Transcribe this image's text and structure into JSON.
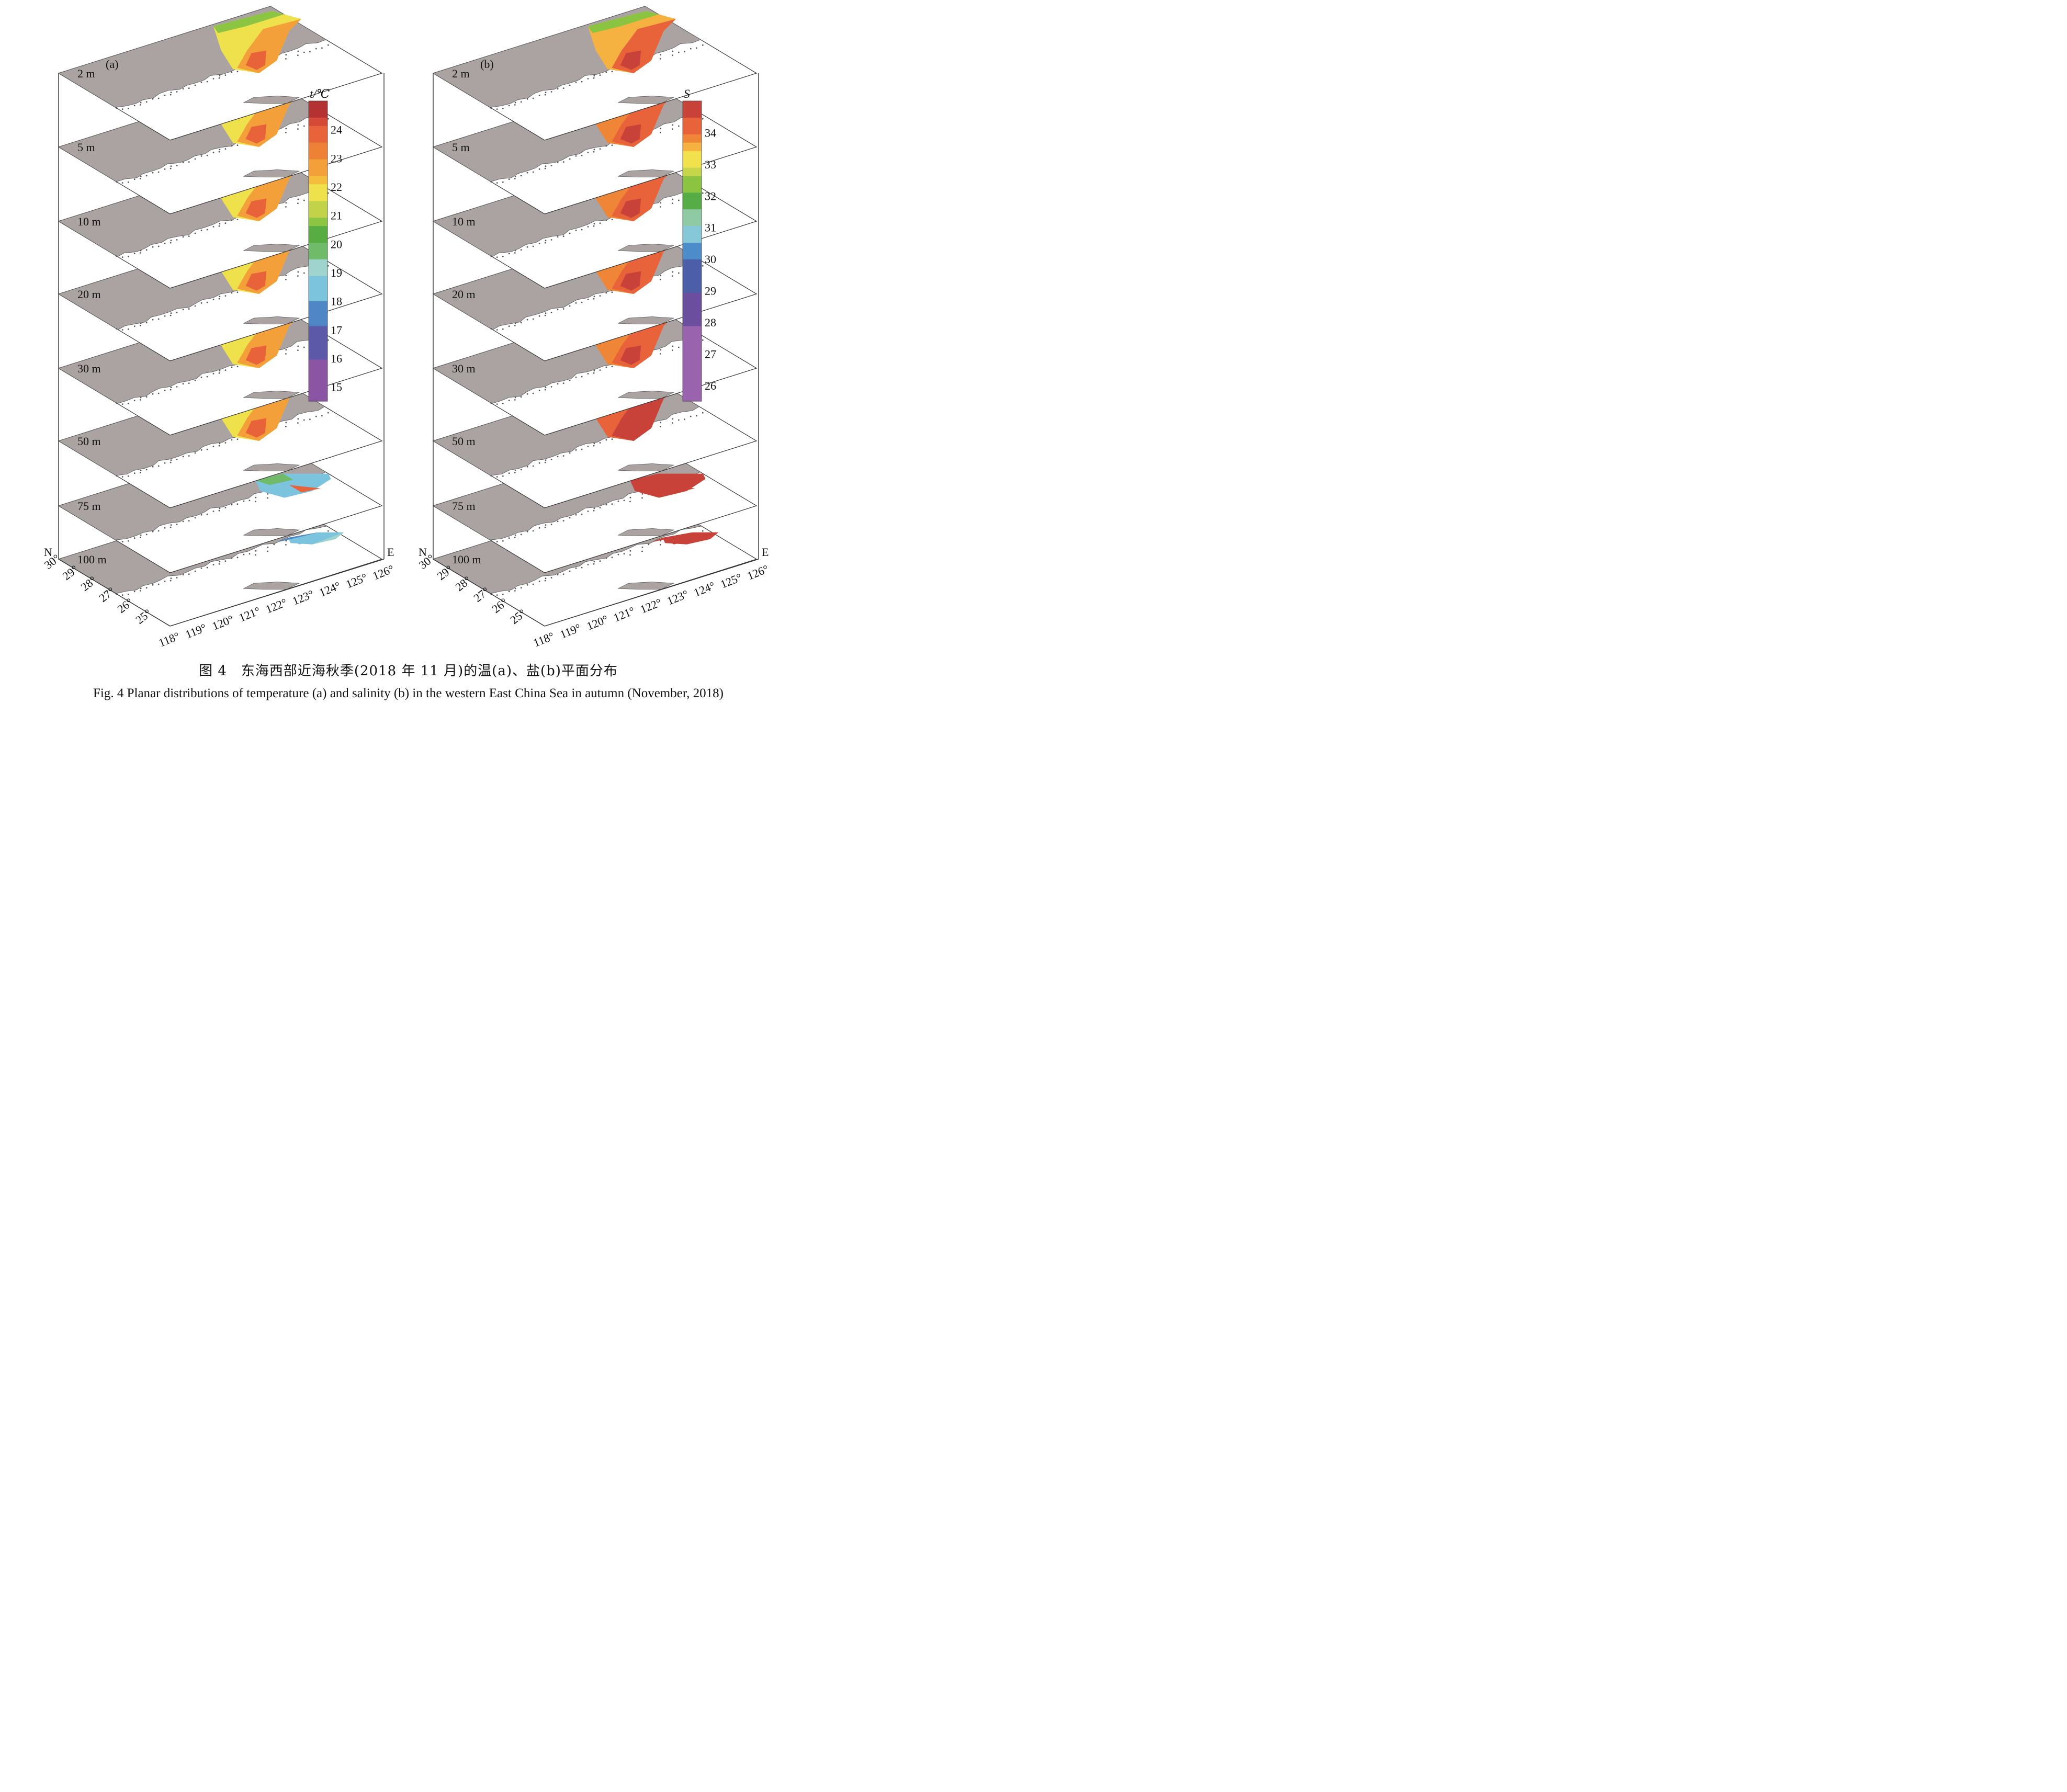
{
  "colors": {
    "land": "#aaa3a2",
    "frame": "#333333",
    "temp": [
      {
        "v": 15,
        "c": "#8b55a3"
      },
      {
        "v": 16,
        "c": "#5c5aa8"
      },
      {
        "v": 17,
        "c": "#4f86c6"
      },
      {
        "v": 18,
        "c": "#7cc3dd"
      },
      {
        "v": 19,
        "c": "#9fd3cd"
      },
      {
        "v": 19.5,
        "c": "#6fbb6a"
      },
      {
        "v": 20,
        "c": "#58ad42"
      },
      {
        "v": 20.5,
        "c": "#8cc541"
      },
      {
        "v": 21,
        "c": "#c2d34a"
      },
      {
        "v": 21.5,
        "c": "#efe14b"
      },
      {
        "v": 22,
        "c": "#f5bd3e"
      },
      {
        "v": 22.5,
        "c": "#f3a03a"
      },
      {
        "v": 23,
        "c": "#ef8137"
      },
      {
        "v": 23.5,
        "c": "#e8623a"
      },
      {
        "v": 24,
        "c": "#d44a37"
      },
      {
        "v": 24.5,
        "c": "#b43232"
      },
      {
        "v": 25,
        "c": "#6d1f1f"
      }
    ],
    "sal": [
      {
        "v": 26,
        "c": "#9a63ad"
      },
      {
        "v": 28,
        "c": "#6b4f9e"
      },
      {
        "v": 29,
        "c": "#4d5ea8"
      },
      {
        "v": 30,
        "c": "#4c8ccb"
      },
      {
        "v": 30.5,
        "c": "#86c8d8"
      },
      {
        "v": 31,
        "c": "#8fcaa5"
      },
      {
        "v": 31.5,
        "c": "#56ad46"
      },
      {
        "v": 32,
        "c": "#8ac440"
      },
      {
        "v": 32.5,
        "c": "#c5d64a"
      },
      {
        "v": 33,
        "c": "#f1e14c"
      },
      {
        "v": 33.3,
        "c": "#f5b240"
      },
      {
        "v": 33.7,
        "c": "#ef8537"
      },
      {
        "v": 34,
        "c": "#e8623a"
      },
      {
        "v": 34.5,
        "c": "#c9423a"
      },
      {
        "v": 35,
        "c": "#6d1f1f"
      }
    ]
  },
  "panels": [
    {
      "id": "a",
      "label": "(a)",
      "legend_title": "t/℃",
      "legend_ticks": [
        "24",
        "23",
        "22",
        "21",
        "20",
        "19",
        "18",
        "17",
        "16",
        "15"
      ],
      "legend_values": [
        24,
        23,
        22,
        21,
        20,
        19,
        18,
        17,
        16,
        15
      ],
      "legend_range": [
        14.5,
        25
      ],
      "depths": [
        {
          "label": "2 m",
          "coast": 20.5,
          "mid": 21.5,
          "off": 22.5,
          "core": 23.6
        },
        {
          "label": "5 m",
          "coast": 20.3,
          "mid": 21.6,
          "off": 22.6,
          "core": 23.8
        },
        {
          "label": "10 m",
          "coast": 20.3,
          "mid": 21.7,
          "off": 22.7,
          "core": 23.8
        },
        {
          "label": "20 m",
          "coast": 20.3,
          "mid": 21.7,
          "off": 22.7,
          "core": 23.8
        },
        {
          "label": "30 m",
          "coast": 20.4,
          "mid": 21.6,
          "off": 22.6,
          "core": 23.7
        },
        {
          "label": "50 m",
          "coast": 20.5,
          "mid": 21.6,
          "off": 22.6,
          "core": 23.7
        },
        {
          "label": "75 m",
          "coast": 19.5,
          "mid": 18.5,
          "off": 18.8,
          "core": 23.5
        },
        {
          "label": "100 m",
          "coast": 17.2,
          "mid": 18.8,
          "off": 19.0,
          "core": 18.6
        }
      ]
    },
    {
      "id": "b",
      "label": "(b)",
      "legend_title": "S",
      "legend_ticks": [
        "34",
        "33",
        "32",
        "31",
        "30",
        "29",
        "28",
        "27",
        "26"
      ],
      "legend_values": [
        34,
        33,
        32,
        31,
        30,
        29,
        28,
        27,
        26
      ],
      "legend_range": [
        25.5,
        35
      ],
      "depths": [
        {
          "label": "2 m",
          "coast": 32.2,
          "mid": 33.6,
          "off": 34.1,
          "core": 34.5
        },
        {
          "label": "5 m",
          "coast": 32.0,
          "mid": 33.7,
          "off": 34.2,
          "core": 34.5
        },
        {
          "label": "10 m",
          "coast": 32.0,
          "mid": 33.8,
          "off": 34.2,
          "core": 34.5
        },
        {
          "label": "20 m",
          "coast": 32.2,
          "mid": 33.8,
          "off": 34.2,
          "core": 34.5
        },
        {
          "label": "30 m",
          "coast": 32.4,
          "mid": 33.9,
          "off": 34.3,
          "core": 34.5
        },
        {
          "label": "50 m",
          "coast": 33.8,
          "mid": 34.2,
          "off": 34.5,
          "core": 34.6
        },
        {
          "label": "75 m",
          "coast": 34.5,
          "mid": 34.6,
          "off": 34.7,
          "core": 34.9
        },
        {
          "label": "100 m",
          "coast": 34.6,
          "mid": 34.6,
          "off": 34.6,
          "core": 34.7
        }
      ]
    }
  ],
  "axes": {
    "north": "N",
    "east": "E",
    "lat_ticks": [
      "30°",
      "29°",
      "28°",
      "27°",
      "26°",
      "25°"
    ],
    "lon_ticks": [
      "118°",
      "119°",
      "120°",
      "121°",
      "122°",
      "123°",
      "124°",
      "125°",
      "126°"
    ]
  },
  "caption_cn": "图 4　东海西部近海秋季(2018 年 11 月)的温(a)、盐(b)平面分布",
  "caption_en": "Fig. 4  Planar distributions of temperature (a) and salinity (b) in the western East China Sea in autumn (November, 2018)"
}
